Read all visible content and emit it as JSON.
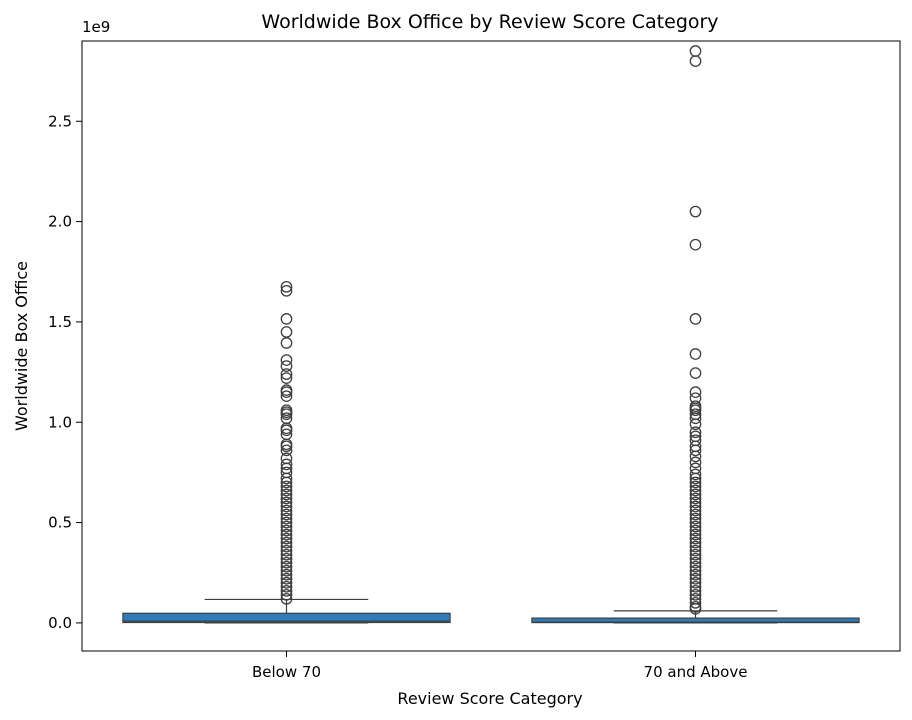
{
  "chart_data": {
    "type": "box",
    "title": "Worldwide Box Office by Review Score Category",
    "xlabel": "Review Score Category",
    "ylabel": "Worldwide Box Office",
    "y_offset_label": "1e9",
    "ylim": [
      -0.14,
      2.9
    ],
    "yticks": [
      0.0,
      0.5,
      1.0,
      1.5,
      2.0,
      2.5
    ],
    "ytick_labels": [
      "0.0",
      "0.5",
      "1.0",
      "1.5",
      "2.0",
      "2.5"
    ],
    "grid": false,
    "legend": "none",
    "box_color": "#2f7cb8",
    "categories": [
      "Below 70",
      "70 and Above"
    ],
    "series": [
      {
        "category": "Below 70",
        "min": 0.0,
        "q1": 0.002,
        "median": 0.009,
        "q3": 0.048,
        "whisker_low": 0.0,
        "whisker_high": 0.117,
        "outliers": [
          1.675,
          1.655,
          1.515,
          1.45,
          1.395,
          1.31,
          1.28,
          1.24,
          1.22,
          1.16,
          1.15,
          1.13,
          1.06,
          1.05,
          1.04,
          1.02,
          0.97,
          0.96,
          0.94,
          0.89,
          0.88,
          0.86,
          0.82,
          0.79,
          0.77,
          0.75,
          0.72,
          0.7,
          0.68,
          0.66,
          0.64,
          0.62,
          0.6,
          0.58,
          0.56,
          0.54,
          0.52,
          0.5,
          0.48,
          0.46,
          0.44,
          0.42,
          0.4,
          0.38,
          0.36,
          0.34,
          0.32,
          0.3,
          0.28,
          0.26,
          0.24,
          0.22,
          0.2,
          0.18,
          0.16,
          0.14,
          0.12
        ]
      },
      {
        "category": "70 and Above",
        "min": 0.0,
        "q1": 0.0015,
        "median": 0.004,
        "q3": 0.024,
        "whisker_low": 0.0,
        "whisker_high": 0.06,
        "outliers": [
          2.85,
          2.8,
          2.05,
          1.885,
          1.515,
          1.34,
          1.245,
          1.15,
          1.12,
          1.08,
          1.07,
          1.06,
          1.04,
          1.02,
          0.99,
          0.95,
          0.93,
          0.91,
          0.88,
          0.86,
          0.83,
          0.8,
          0.77,
          0.74,
          0.72,
          0.7,
          0.68,
          0.66,
          0.64,
          0.62,
          0.6,
          0.58,
          0.56,
          0.54,
          0.52,
          0.5,
          0.48,
          0.46,
          0.44,
          0.42,
          0.4,
          0.38,
          0.36,
          0.34,
          0.32,
          0.3,
          0.28,
          0.26,
          0.24,
          0.22,
          0.2,
          0.18,
          0.16,
          0.14,
          0.12,
          0.1,
          0.08,
          0.07
        ]
      }
    ]
  }
}
